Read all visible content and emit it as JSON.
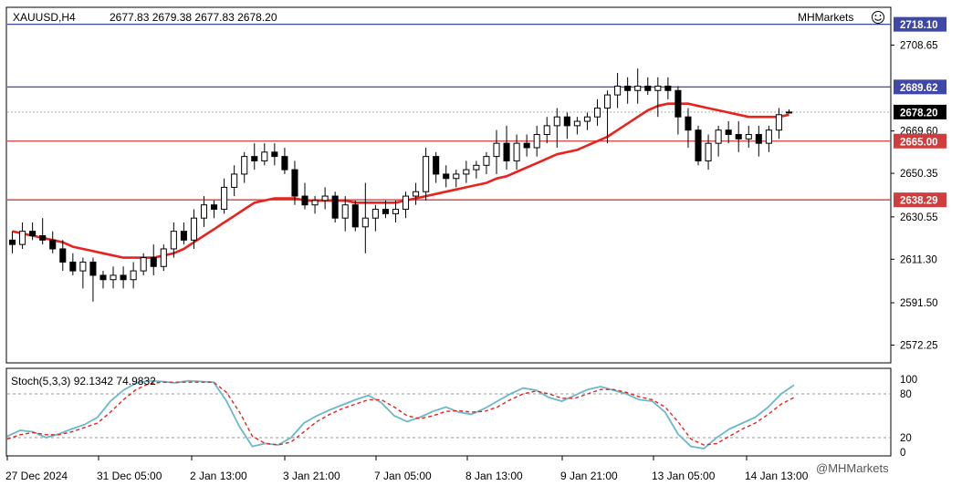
{
  "header": {
    "symbol": "XAUUSD,H4",
    "ohlc": "2677.83 2679.38 2677.83 2678.20",
    "brand": "MHMarkets"
  },
  "watermark": "@MHMarkets",
  "colors": {
    "ma": "#e8231e",
    "level_blue": "#3f48a8",
    "level_red": "#d13c3c",
    "stoch_main": "#6ab8c9",
    "stoch_signal": "#e8231e",
    "current_price_bg": "#000000"
  },
  "chart_data": [
    {
      "type": "candlestick",
      "symbol": "XAUUSD",
      "timeframe": "H4",
      "ylim": [
        2565,
        2725
      ],
      "price_ticks": [
        "2708.65",
        "2669.60",
        "2650.35",
        "2630.55",
        "2611.30",
        "2591.50",
        "2572.25"
      ],
      "time_labels": [
        "27 Dec 2024",
        "31 Dec 05:00",
        "2 Jan 13:00",
        "3 Jan 21:00",
        "7 Jan 05:00",
        "8 Jan 13:00",
        "9 Jan 21:00",
        "13 Jan 05:00",
        "14 Jan 13:00"
      ],
      "levels": [
        {
          "value": 2718.1,
          "label": "2718.10",
          "kind": "blue"
        },
        {
          "value": 2689.62,
          "label": "2689.62",
          "kind": "blue"
        },
        {
          "value": 2678.2,
          "label": "2678.20",
          "kind": "current"
        },
        {
          "value": 2665.0,
          "label": "2665.00",
          "kind": "red"
        },
        {
          "value": 2638.29,
          "label": "2638.29",
          "kind": "red"
        }
      ],
      "candles": [
        [
          2620,
          2624,
          2614,
          2618
        ],
        [
          2618,
          2628,
          2616,
          2624
        ],
        [
          2624,
          2628,
          2620,
          2622
        ],
        [
          2622,
          2630,
          2618,
          2620
        ],
        [
          2620,
          2624,
          2614,
          2616
        ],
        [
          2616,
          2620,
          2606,
          2610
        ],
        [
          2610,
          2614,
          2604,
          2606
        ],
        [
          2606,
          2612,
          2598,
          2610
        ],
        [
          2610,
          2612,
          2592,
          2604
        ],
        [
          2604,
          2606,
          2598,
          2602
        ],
        [
          2602,
          2608,
          2598,
          2604
        ],
        [
          2604,
          2608,
          2598,
          2602
        ],
        [
          2602,
          2610,
          2598,
          2606
        ],
        [
          2606,
          2614,
          2604,
          2612
        ],
        [
          2612,
          2618,
          2604,
          2608
        ],
        [
          2608,
          2618,
          2606,
          2616
        ],
        [
          2616,
          2628,
          2612,
          2624
        ],
        [
          2624,
          2628,
          2618,
          2620
        ],
        [
          2620,
          2634,
          2616,
          2630
        ],
        [
          2630,
          2640,
          2626,
          2636
        ],
        [
          2636,
          2638,
          2630,
          2634
        ],
        [
          2634,
          2648,
          2632,
          2644
        ],
        [
          2644,
          2654,
          2640,
          2650
        ],
        [
          2650,
          2660,
          2646,
          2658
        ],
        [
          2658,
          2664,
          2652,
          2656
        ],
        [
          2656,
          2664,
          2654,
          2660
        ],
        [
          2660,
          2664,
          2654,
          2658
        ],
        [
          2658,
          2662,
          2650,
          2652
        ],
        [
          2652,
          2656,
          2636,
          2640
        ],
        [
          2640,
          2646,
          2634,
          2636
        ],
        [
          2636,
          2640,
          2632,
          2638
        ],
        [
          2638,
          2644,
          2634,
          2640
        ],
        [
          2640,
          2642,
          2628,
          2630
        ],
        [
          2630,
          2640,
          2624,
          2636
        ],
        [
          2636,
          2638,
          2624,
          2626
        ],
        [
          2626,
          2646,
          2614,
          2630
        ],
        [
          2630,
          2636,
          2624,
          2634
        ],
        [
          2634,
          2638,
          2630,
          2632
        ],
        [
          2632,
          2638,
          2628,
          2634
        ],
        [
          2634,
          2642,
          2630,
          2640
        ],
        [
          2640,
          2646,
          2636,
          2642
        ],
        [
          2642,
          2662,
          2638,
          2658
        ],
        [
          2658,
          2660,
          2646,
          2650
        ],
        [
          2650,
          2654,
          2644,
          2648
        ],
        [
          2648,
          2652,
          2644,
          2650
        ],
        [
          2650,
          2656,
          2646,
          2652
        ],
        [
          2652,
          2656,
          2648,
          2654
        ],
        [
          2654,
          2660,
          2650,
          2658
        ],
        [
          2658,
          2670,
          2650,
          2664
        ],
        [
          2664,
          2672,
          2652,
          2656
        ],
        [
          2656,
          2668,
          2652,
          2664
        ],
        [
          2664,
          2668,
          2658,
          2662
        ],
        [
          2662,
          2672,
          2658,
          2668
        ],
        [
          2668,
          2676,
          2664,
          2672
        ],
        [
          2672,
          2680,
          2662,
          2676
        ],
        [
          2676,
          2678,
          2666,
          2672
        ],
        [
          2672,
          2676,
          2668,
          2674
        ],
        [
          2674,
          2678,
          2670,
          2676
        ],
        [
          2676,
          2684,
          2672,
          2680
        ],
        [
          2680,
          2688,
          2664,
          2686
        ],
        [
          2686,
          2696,
          2680,
          2690
        ],
        [
          2690,
          2694,
          2682,
          2688
        ],
        [
          2688,
          2698,
          2682,
          2690
        ],
        [
          2690,
          2694,
          2686,
          2688
        ],
        [
          2688,
          2694,
          2676,
          2690
        ],
        [
          2690,
          2694,
          2684,
          2688
        ],
        [
          2688,
          2690,
          2668,
          2676
        ],
        [
          2676,
          2680,
          2662,
          2670
        ],
        [
          2670,
          2672,
          2654,
          2656
        ],
        [
          2656,
          2668,
          2652,
          2664
        ],
        [
          2664,
          2672,
          2658,
          2670
        ],
        [
          2670,
          2674,
          2664,
          2668
        ],
        [
          2668,
          2674,
          2660,
          2666
        ],
        [
          2666,
          2672,
          2662,
          2668
        ],
        [
          2668,
          2672,
          2658,
          2664
        ],
        [
          2664,
          2672,
          2660,
          2670
        ],
        [
          2670,
          2680,
          2666,
          2677
        ],
        [
          2677.83,
          2679.38,
          2677.83,
          2678.2
        ]
      ],
      "ma_line": [
        2624,
        2623,
        2622,
        2621,
        2620,
        2619,
        2617,
        2616,
        2615,
        2614,
        2613,
        2612,
        2612,
        2612,
        2612,
        2613,
        2614,
        2616,
        2619,
        2622,
        2625,
        2628,
        2631,
        2634,
        2637,
        2638,
        2639,
        2639,
        2639,
        2638,
        2638,
        2638,
        2638,
        2638,
        2637,
        2637,
        2637,
        2637,
        2637,
        2638,
        2639,
        2640,
        2641,
        2642,
        2643,
        2644,
        2645,
        2646,
        2648,
        2649,
        2651,
        2653,
        2655,
        2657,
        2659,
        2660,
        2661,
        2663,
        2665,
        2667,
        2670,
        2673,
        2676,
        2679,
        2681,
        2682,
        2682,
        2682,
        2681,
        2680,
        2679,
        2678,
        2677,
        2676,
        2676,
        2676,
        2676,
        2677
      ]
    },
    {
      "type": "line",
      "title": "Stoch(5,3,3) 92.1342 74.9832",
      "ylim": [
        0,
        100
      ],
      "y_ticks": [
        "100",
        "80",
        "20",
        "0"
      ],
      "levels": [
        80,
        20
      ],
      "series": [
        {
          "name": "main",
          "values": [
            22,
            30,
            28,
            20,
            25,
            32,
            38,
            48,
            70,
            85,
            95,
            98,
            97,
            95,
            98,
            97,
            96,
            70,
            35,
            8,
            12,
            10,
            20,
            40,
            50,
            58,
            65,
            72,
            78,
            68,
            50,
            42,
            48,
            56,
            62,
            55,
            52,
            60,
            70,
            80,
            88,
            85,
            75,
            70,
            78,
            86,
            90,
            85,
            80,
            72,
            70,
            55,
            25,
            8,
            5,
            20,
            32,
            40,
            48,
            62,
            80,
            92
          ]
        },
        {
          "name": "signal",
          "values": [
            18,
            24,
            27,
            24,
            24,
            28,
            34,
            40,
            55,
            72,
            86,
            94,
            96,
            96,
            96,
            96,
            96,
            82,
            55,
            22,
            12,
            10,
            14,
            28,
            42,
            52,
            60,
            66,
            72,
            72,
            62,
            50,
            46,
            50,
            56,
            57,
            55,
            56,
            62,
            72,
            80,
            84,
            80,
            74,
            74,
            80,
            86,
            86,
            82,
            76,
            72,
            62,
            42,
            18,
            10,
            12,
            22,
            32,
            40,
            52,
            66,
            75
          ]
        }
      ]
    }
  ]
}
